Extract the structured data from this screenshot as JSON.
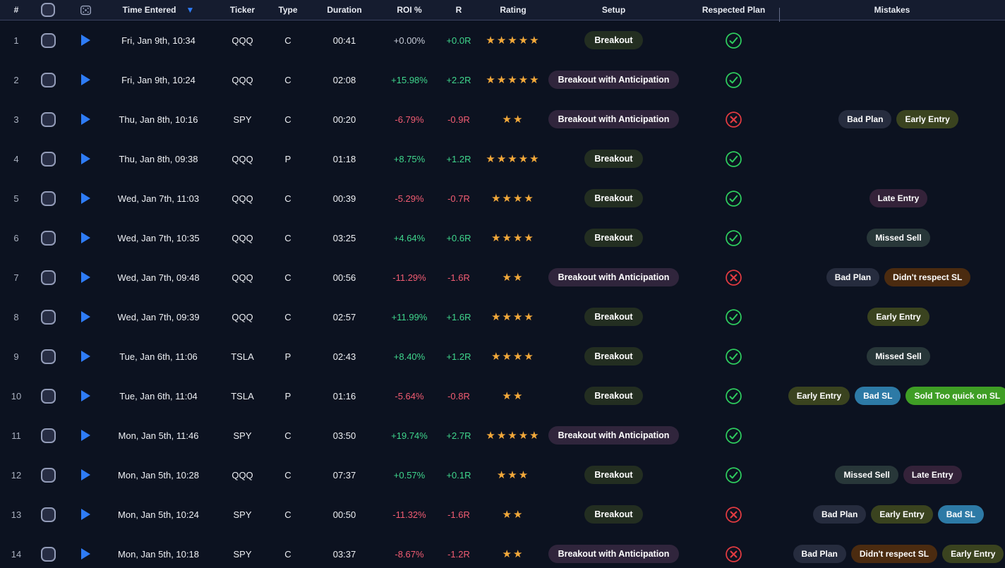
{
  "table": {
    "columns": {
      "num": "#",
      "time": "Time Entered",
      "ticker": "Ticker",
      "type": "Type",
      "duration": "Duration",
      "roi": "ROI %",
      "r": "R",
      "rating": "Rating",
      "setup": "Setup",
      "respected": "Respected Plan",
      "mistakes": "Mistakes"
    },
    "sort": {
      "column": "Time Entered",
      "direction": "desc",
      "arrow": "▼"
    },
    "colors": {
      "check_green": "#2ecc5e",
      "cross_red": "#e23b41",
      "star_gold": "#f3a93a",
      "play_blue": "#2e7cf6",
      "roi_positive": "#3fd68c",
      "roi_negative": "#f25c72",
      "roi_zero": "#c6ccd8"
    },
    "setup_colors": {
      "Breakout": "#232e21",
      "Breakout with Anticipation": "#30253c"
    },
    "mistake_colors": {
      "Bad Plan": "#262c3e",
      "Early Entry": "#3a431f",
      "Late Entry": "#342239",
      "Missed Sell": "#283739",
      "Didn't respect SL": "#4b2b10",
      "Bad SL": "#2d7aa6",
      "Sold Too quick on SL": "#3f9e25"
    },
    "rows": [
      {
        "num": "1",
        "time": "Fri, Jan 9th, 10:34",
        "ticker": "QQQ",
        "type": "C",
        "duration": "00:41",
        "roi": "+0.00%",
        "roi_tone": "zero",
        "r": "+0.0R",
        "r_tone": "pos",
        "rating": 5,
        "setup": "Breakout",
        "respected": true,
        "mistakes": []
      },
      {
        "num": "2",
        "time": "Fri, Jan 9th, 10:24",
        "ticker": "QQQ",
        "type": "C",
        "duration": "02:08",
        "roi": "+15.98%",
        "roi_tone": "pos",
        "r": "+2.2R",
        "r_tone": "pos",
        "rating": 5,
        "setup": "Breakout with Anticipation",
        "respected": true,
        "mistakes": []
      },
      {
        "num": "3",
        "time": "Thu, Jan 8th, 10:16",
        "ticker": "SPY",
        "type": "C",
        "duration": "00:20",
        "roi": "-6.79%",
        "roi_tone": "neg",
        "r": "-0.9R",
        "r_tone": "neg",
        "rating": 2,
        "setup": "Breakout with Anticipation",
        "respected": false,
        "mistakes": [
          "Bad Plan",
          "Early Entry"
        ]
      },
      {
        "num": "4",
        "time": "Thu, Jan 8th, 09:38",
        "ticker": "QQQ",
        "type": "P",
        "duration": "01:18",
        "roi": "+8.75%",
        "roi_tone": "pos",
        "r": "+1.2R",
        "r_tone": "pos",
        "rating": 5,
        "setup": "Breakout",
        "respected": true,
        "mistakes": []
      },
      {
        "num": "5",
        "time": "Wed, Jan 7th, 11:03",
        "ticker": "QQQ",
        "type": "C",
        "duration": "00:39",
        "roi": "-5.29%",
        "roi_tone": "neg",
        "r": "-0.7R",
        "r_tone": "neg",
        "rating": 4,
        "setup": "Breakout",
        "respected": true,
        "mistakes": [
          "Late Entry"
        ]
      },
      {
        "num": "6",
        "time": "Wed, Jan 7th, 10:35",
        "ticker": "QQQ",
        "type": "C",
        "duration": "03:25",
        "roi": "+4.64%",
        "roi_tone": "pos",
        "r": "+0.6R",
        "r_tone": "pos",
        "rating": 4,
        "setup": "Breakout",
        "respected": true,
        "mistakes": [
          "Missed Sell"
        ]
      },
      {
        "num": "7",
        "time": "Wed, Jan 7th, 09:48",
        "ticker": "QQQ",
        "type": "C",
        "duration": "00:56",
        "roi": "-11.29%",
        "roi_tone": "neg",
        "r": "-1.6R",
        "r_tone": "neg",
        "rating": 2,
        "setup": "Breakout with Anticipation",
        "respected": false,
        "mistakes": [
          "Bad Plan",
          "Didn't respect SL"
        ]
      },
      {
        "num": "8",
        "time": "Wed, Jan 7th, 09:39",
        "ticker": "QQQ",
        "type": "C",
        "duration": "02:57",
        "roi": "+11.99%",
        "roi_tone": "pos",
        "r": "+1.6R",
        "r_tone": "pos",
        "rating": 4,
        "setup": "Breakout",
        "respected": true,
        "mistakes": [
          "Early Entry"
        ]
      },
      {
        "num": "9",
        "time": "Tue, Jan 6th, 11:06",
        "ticker": "TSLA",
        "type": "P",
        "duration": "02:43",
        "roi": "+8.40%",
        "roi_tone": "pos",
        "r": "+1.2R",
        "r_tone": "pos",
        "rating": 4,
        "setup": "Breakout",
        "respected": true,
        "mistakes": [
          "Missed Sell"
        ]
      },
      {
        "num": "10",
        "time": "Tue, Jan 6th, 11:04",
        "ticker": "TSLA",
        "type": "P",
        "duration": "01:16",
        "roi": "-5.64%",
        "roi_tone": "neg",
        "r": "-0.8R",
        "r_tone": "neg",
        "rating": 2,
        "setup": "Breakout",
        "respected": true,
        "mistakes": [
          "Early Entry",
          "Bad SL",
          "Sold Too quick on SL"
        ]
      },
      {
        "num": "11",
        "time": "Mon, Jan 5th, 11:46",
        "ticker": "SPY",
        "type": "C",
        "duration": "03:50",
        "roi": "+19.74%",
        "roi_tone": "pos",
        "r": "+2.7R",
        "r_tone": "pos",
        "rating": 5,
        "setup": "Breakout with Anticipation",
        "respected": true,
        "mistakes": []
      },
      {
        "num": "12",
        "time": "Mon, Jan 5th, 10:28",
        "ticker": "QQQ",
        "type": "C",
        "duration": "07:37",
        "roi": "+0.57%",
        "roi_tone": "pos",
        "r": "+0.1R",
        "r_tone": "pos",
        "rating": 3,
        "setup": "Breakout",
        "respected": true,
        "mistakes": [
          "Missed Sell",
          "Late Entry"
        ]
      },
      {
        "num": "13",
        "time": "Mon, Jan 5th, 10:24",
        "ticker": "SPY",
        "type": "C",
        "duration": "00:50",
        "roi": "-11.32%",
        "roi_tone": "neg",
        "r": "-1.6R",
        "r_tone": "neg",
        "rating": 2,
        "setup": "Breakout",
        "respected": false,
        "mistakes": [
          "Bad Plan",
          "Early Entry",
          "Bad SL"
        ]
      },
      {
        "num": "14",
        "time": "Mon, Jan 5th, 10:18",
        "ticker": "SPY",
        "type": "C",
        "duration": "03:37",
        "roi": "-8.67%",
        "roi_tone": "neg",
        "r": "-1.2R",
        "r_tone": "neg",
        "rating": 2,
        "setup": "Breakout with Anticipation",
        "respected": false,
        "mistakes": [
          "Bad Plan",
          "Didn't respect SL",
          "Early Entry"
        ]
      }
    ]
  }
}
